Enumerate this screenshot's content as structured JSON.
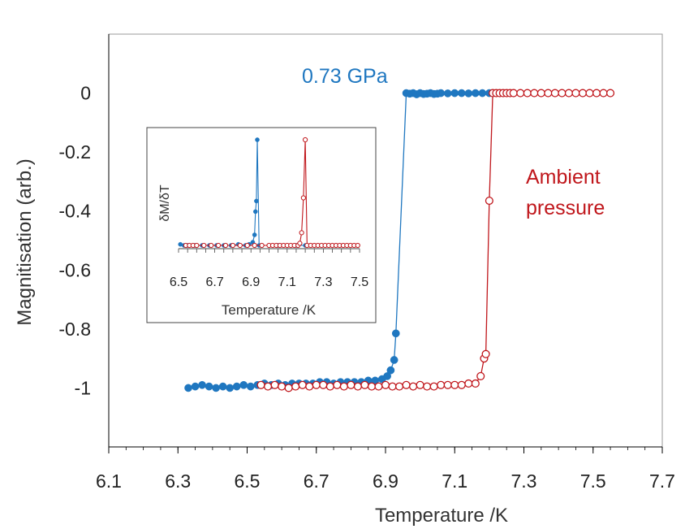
{
  "chart_data": [
    {
      "type": "scatter",
      "title": "",
      "xlabel": "Temperature /K",
      "ylabel": "Magnitisation (arb.)",
      "xlim": [
        6.1,
        7.7
      ],
      "ylim": [
        -1.2,
        0.2
      ],
      "xticks": [
        "6.1",
        "6.3",
        "6.5",
        "6.7",
        "6.9",
        "7.1",
        "7.3",
        "7.5",
        "7.7"
      ],
      "yticks": [
        "0",
        "-0.2",
        "-0.4",
        "-0.6",
        "-0.8",
        "-1"
      ],
      "grid": false,
      "annotations": [
        "0.73 GPa",
        "Ambient",
        "pressure"
      ],
      "series": [
        {
          "name": "0.73 GPa",
          "color": "#1f77c0",
          "marker": "filled-circle",
          "points": [
            [
              6.33,
              -1.0
            ],
            [
              6.35,
              -0.995
            ],
            [
              6.37,
              -0.99
            ],
            [
              6.39,
              -0.995
            ],
            [
              6.41,
              -1.0
            ],
            [
              6.43,
              -0.995
            ],
            [
              6.45,
              -1.0
            ],
            [
              6.47,
              -0.995
            ],
            [
              6.49,
              -0.99
            ],
            [
              6.51,
              -0.995
            ],
            [
              6.53,
              -0.99
            ],
            [
              6.55,
              -0.985
            ],
            [
              6.57,
              -0.99
            ],
            [
              6.59,
              -0.985
            ],
            [
              6.61,
              -0.99
            ],
            [
              6.63,
              -0.985
            ],
            [
              6.65,
              -0.985
            ],
            [
              6.67,
              -0.985
            ],
            [
              6.69,
              -0.985
            ],
            [
              6.71,
              -0.98
            ],
            [
              6.73,
              -0.98
            ],
            [
              6.75,
              -0.985
            ],
            [
              6.77,
              -0.98
            ],
            [
              6.79,
              -0.98
            ],
            [
              6.81,
              -0.98
            ],
            [
              6.83,
              -0.98
            ],
            [
              6.85,
              -0.975
            ],
            [
              6.87,
              -0.975
            ],
            [
              6.89,
              -0.97
            ],
            [
              6.905,
              -0.96
            ],
            [
              6.915,
              -0.94
            ],
            [
              6.925,
              -0.905
            ],
            [
              6.93,
              -0.815
            ],
            [
              6.96,
              0.0
            ],
            [
              6.97,
              -0.002
            ],
            [
              6.98,
              0.0
            ],
            [
              6.99,
              -0.004
            ],
            [
              7.0,
              0.0
            ],
            [
              7.01,
              -0.003
            ],
            [
              7.02,
              -0.002
            ],
            [
              7.03,
              0.0
            ],
            [
              7.04,
              -0.003
            ],
            [
              7.05,
              -0.002
            ],
            [
              7.06,
              0.0
            ],
            [
              7.08,
              -0.001
            ],
            [
              7.1,
              0.0
            ],
            [
              7.12,
              0.0
            ],
            [
              7.14,
              -0.001
            ],
            [
              7.16,
              0.0
            ],
            [
              7.18,
              0.0
            ],
            [
              7.2,
              0.0
            ]
          ]
        },
        {
          "name": "Ambient pressure",
          "color": "#c0171c",
          "marker": "open-circle",
          "points": [
            [
              6.54,
              -0.99
            ],
            [
              6.56,
              -0.995
            ],
            [
              6.58,
              -0.99
            ],
            [
              6.6,
              -0.995
            ],
            [
              6.62,
              -1.0
            ],
            [
              6.64,
              -0.995
            ],
            [
              6.66,
              -0.99
            ],
            [
              6.68,
              -0.995
            ],
            [
              6.7,
              -0.99
            ],
            [
              6.72,
              -0.99
            ],
            [
              6.74,
              -0.995
            ],
            [
              6.76,
              -0.99
            ],
            [
              6.78,
              -0.995
            ],
            [
              6.8,
              -0.99
            ],
            [
              6.82,
              -0.995
            ],
            [
              6.84,
              -0.99
            ],
            [
              6.86,
              -0.995
            ],
            [
              6.88,
              -0.995
            ],
            [
              6.9,
              -0.99
            ],
            [
              6.92,
              -0.995
            ],
            [
              6.94,
              -0.995
            ],
            [
              6.96,
              -0.99
            ],
            [
              6.98,
              -0.995
            ],
            [
              7.0,
              -0.99
            ],
            [
              7.02,
              -0.995
            ],
            [
              7.04,
              -0.995
            ],
            [
              7.06,
              -0.99
            ],
            [
              7.08,
              -0.99
            ],
            [
              7.1,
              -0.99
            ],
            [
              7.12,
              -0.99
            ],
            [
              7.14,
              -0.985
            ],
            [
              7.16,
              -0.985
            ],
            [
              7.175,
              -0.96
            ],
            [
              7.185,
              -0.9
            ],
            [
              7.19,
              -0.885
            ],
            [
              7.2,
              -0.365
            ],
            [
              7.21,
              0.0
            ],
            [
              7.22,
              0.0
            ],
            [
              7.23,
              0.0
            ],
            [
              7.24,
              0.0
            ],
            [
              7.25,
              0.0
            ],
            [
              7.26,
              0.0
            ],
            [
              7.27,
              0.0
            ],
            [
              7.29,
              0.0
            ],
            [
              7.31,
              0.0
            ],
            [
              7.33,
              0.0
            ],
            [
              7.35,
              0.0
            ],
            [
              7.37,
              0.0
            ],
            [
              7.39,
              0.0
            ],
            [
              7.41,
              0.0
            ],
            [
              7.43,
              0.0
            ],
            [
              7.45,
              0.0
            ],
            [
              7.47,
              0.0
            ],
            [
              7.49,
              0.0
            ],
            [
              7.51,
              0.0
            ],
            [
              7.53,
              0.0
            ],
            [
              7.55,
              0.0
            ]
          ]
        }
      ]
    },
    {
      "type": "scatter",
      "title": "",
      "xlabel": "Temperature /K",
      "ylabel": "δM/δT",
      "xlim": [
        6.5,
        7.5
      ],
      "ylim": [
        0,
        1
      ],
      "xticks": [
        "6.5",
        "6.7",
        "6.9",
        "7.1",
        "7.3",
        "7.5"
      ],
      "grid": false,
      "series": [
        {
          "name": "0.73 GPa",
          "color": "#1f77c0",
          "marker": "filled-circle",
          "points": [
            [
              6.51,
              0.01
            ],
            [
              6.53,
              0.0
            ],
            [
              6.55,
              0.0
            ],
            [
              6.59,
              0.0
            ],
            [
              6.63,
              0.0
            ],
            [
              6.67,
              0.0
            ],
            [
              6.71,
              0.0
            ],
            [
              6.75,
              0.0
            ],
            [
              6.79,
              0.0
            ],
            [
              6.83,
              0.01
            ],
            [
              6.87,
              0.0
            ],
            [
              6.89,
              0.01
            ],
            [
              6.91,
              0.03
            ],
            [
              6.92,
              0.1
            ],
            [
              6.925,
              0.32
            ],
            [
              6.93,
              0.42
            ],
            [
              6.935,
              1.0
            ],
            [
              6.945,
              0.0
            ],
            [
              6.96,
              0.0
            ],
            [
              7.0,
              0.0
            ],
            [
              7.05,
              0.0
            ],
            [
              7.1,
              0.0
            ],
            [
              7.15,
              0.0
            ],
            [
              7.2,
              0.0
            ]
          ]
        },
        {
          "name": "Ambient pressure",
          "color": "#c0171c",
          "marker": "open-circle",
          "points": [
            [
              6.54,
              0.0
            ],
            [
              6.56,
              0.0
            ],
            [
              6.58,
              0.0
            ],
            [
              6.6,
              0.0
            ],
            [
              6.64,
              0.0
            ],
            [
              6.68,
              0.0
            ],
            [
              6.72,
              0.0
            ],
            [
              6.76,
              0.0
            ],
            [
              6.8,
              0.0
            ],
            [
              6.84,
              0.0
            ],
            [
              6.88,
              0.0
            ],
            [
              6.92,
              0.0
            ],
            [
              6.96,
              0.0
            ],
            [
              7.0,
              0.0
            ],
            [
              7.02,
              0.0
            ],
            [
              7.04,
              0.0
            ],
            [
              7.06,
              0.0
            ],
            [
              7.08,
              0.0
            ],
            [
              7.1,
              0.0
            ],
            [
              7.12,
              0.0
            ],
            [
              7.14,
              0.0
            ],
            [
              7.16,
              0.0
            ],
            [
              7.17,
              0.02
            ],
            [
              7.18,
              0.12
            ],
            [
              7.19,
              0.45
            ],
            [
              7.2,
              1.0
            ],
            [
              7.21,
              0.0
            ],
            [
              7.23,
              0.0
            ],
            [
              7.25,
              0.0
            ],
            [
              7.27,
              0.0
            ],
            [
              7.29,
              0.0
            ],
            [
              7.31,
              0.0
            ],
            [
              7.33,
              0.0
            ],
            [
              7.35,
              0.0
            ],
            [
              7.37,
              0.0
            ],
            [
              7.39,
              0.0
            ],
            [
              7.41,
              0.0
            ],
            [
              7.43,
              0.0
            ],
            [
              7.45,
              0.0
            ],
            [
              7.47,
              0.0
            ],
            [
              7.49,
              0.0
            ]
          ]
        }
      ]
    }
  ]
}
